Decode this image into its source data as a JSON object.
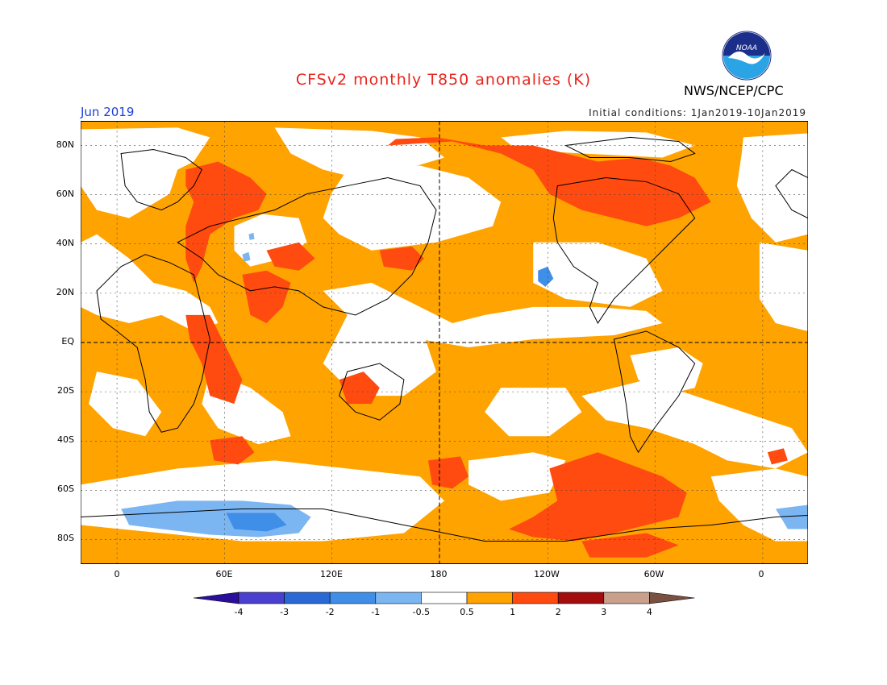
{
  "title": "CFSv2 monthly T850 anomalies (K)",
  "org": "NWS/NCEP/CPC",
  "logo_text": "NOAA",
  "period": "Jun 2019",
  "initial_conditions": "Initial conditions: 1Jan2019-10Jan2019",
  "lat_labels": [
    "80N",
    "60N",
    "40N",
    "20N",
    "EQ",
    "20S",
    "40S",
    "60S",
    "80S"
  ],
  "lon_labels": [
    "0",
    "60E",
    "120E",
    "180",
    "120W",
    "60W",
    "0"
  ],
  "colorbar": {
    "labels": [
      "-4",
      "-3",
      "-2",
      "-1",
      "-0.5",
      "0.5",
      "1",
      "2",
      "3",
      "4"
    ],
    "colors": [
      "#2a0f9a",
      "#4a3fcf",
      "#2a68d6",
      "#3f8ee8",
      "#7cb6f2",
      "#ffffff",
      "#ffa300",
      "#ff4a10",
      "#a30d0d",
      "#c9a08c",
      "#7a5040"
    ]
  },
  "map_colors": {
    "warm_0_5_1": "#ffa300",
    "warm_1_2": "#ff4a10",
    "neutral": "#ffffff",
    "cool_minus_1": "#7cb6f2",
    "cool_minus_2": "#3f8ee8"
  }
}
